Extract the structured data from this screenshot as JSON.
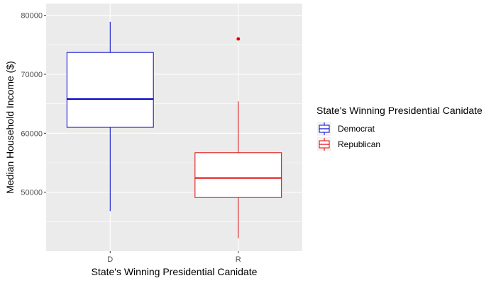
{
  "chart_data": {
    "type": "boxplot",
    "xlabel": "State's Winning Presidential Canidate",
    "ylabel": "Median Household Income ($)",
    "categories": [
      "D",
      "R"
    ],
    "ylim": [
      40000,
      82000
    ],
    "y_ticks": [
      50000,
      60000,
      70000,
      80000
    ],
    "y_tick_labels": [
      "50000",
      "60000",
      "70000",
      "80000"
    ],
    "grid": true,
    "legend": {
      "title": "State's Winning Presidential Canidate",
      "placement": "right",
      "entries": [
        "Democrat",
        "Republican"
      ]
    },
    "series": [
      {
        "name": "Democrat",
        "category": "D",
        "color": "#0000cc",
        "min": 46800,
        "q1": 61000,
        "median": 65800,
        "q3": 73700,
        "max": 78900,
        "outliers": []
      },
      {
        "name": "Republican",
        "category": "R",
        "color": "#e00000",
        "min": 42200,
        "q1": 49100,
        "median": 52400,
        "q3": 56700,
        "max": 65400,
        "outliers": [
          76000
        ]
      }
    ]
  }
}
